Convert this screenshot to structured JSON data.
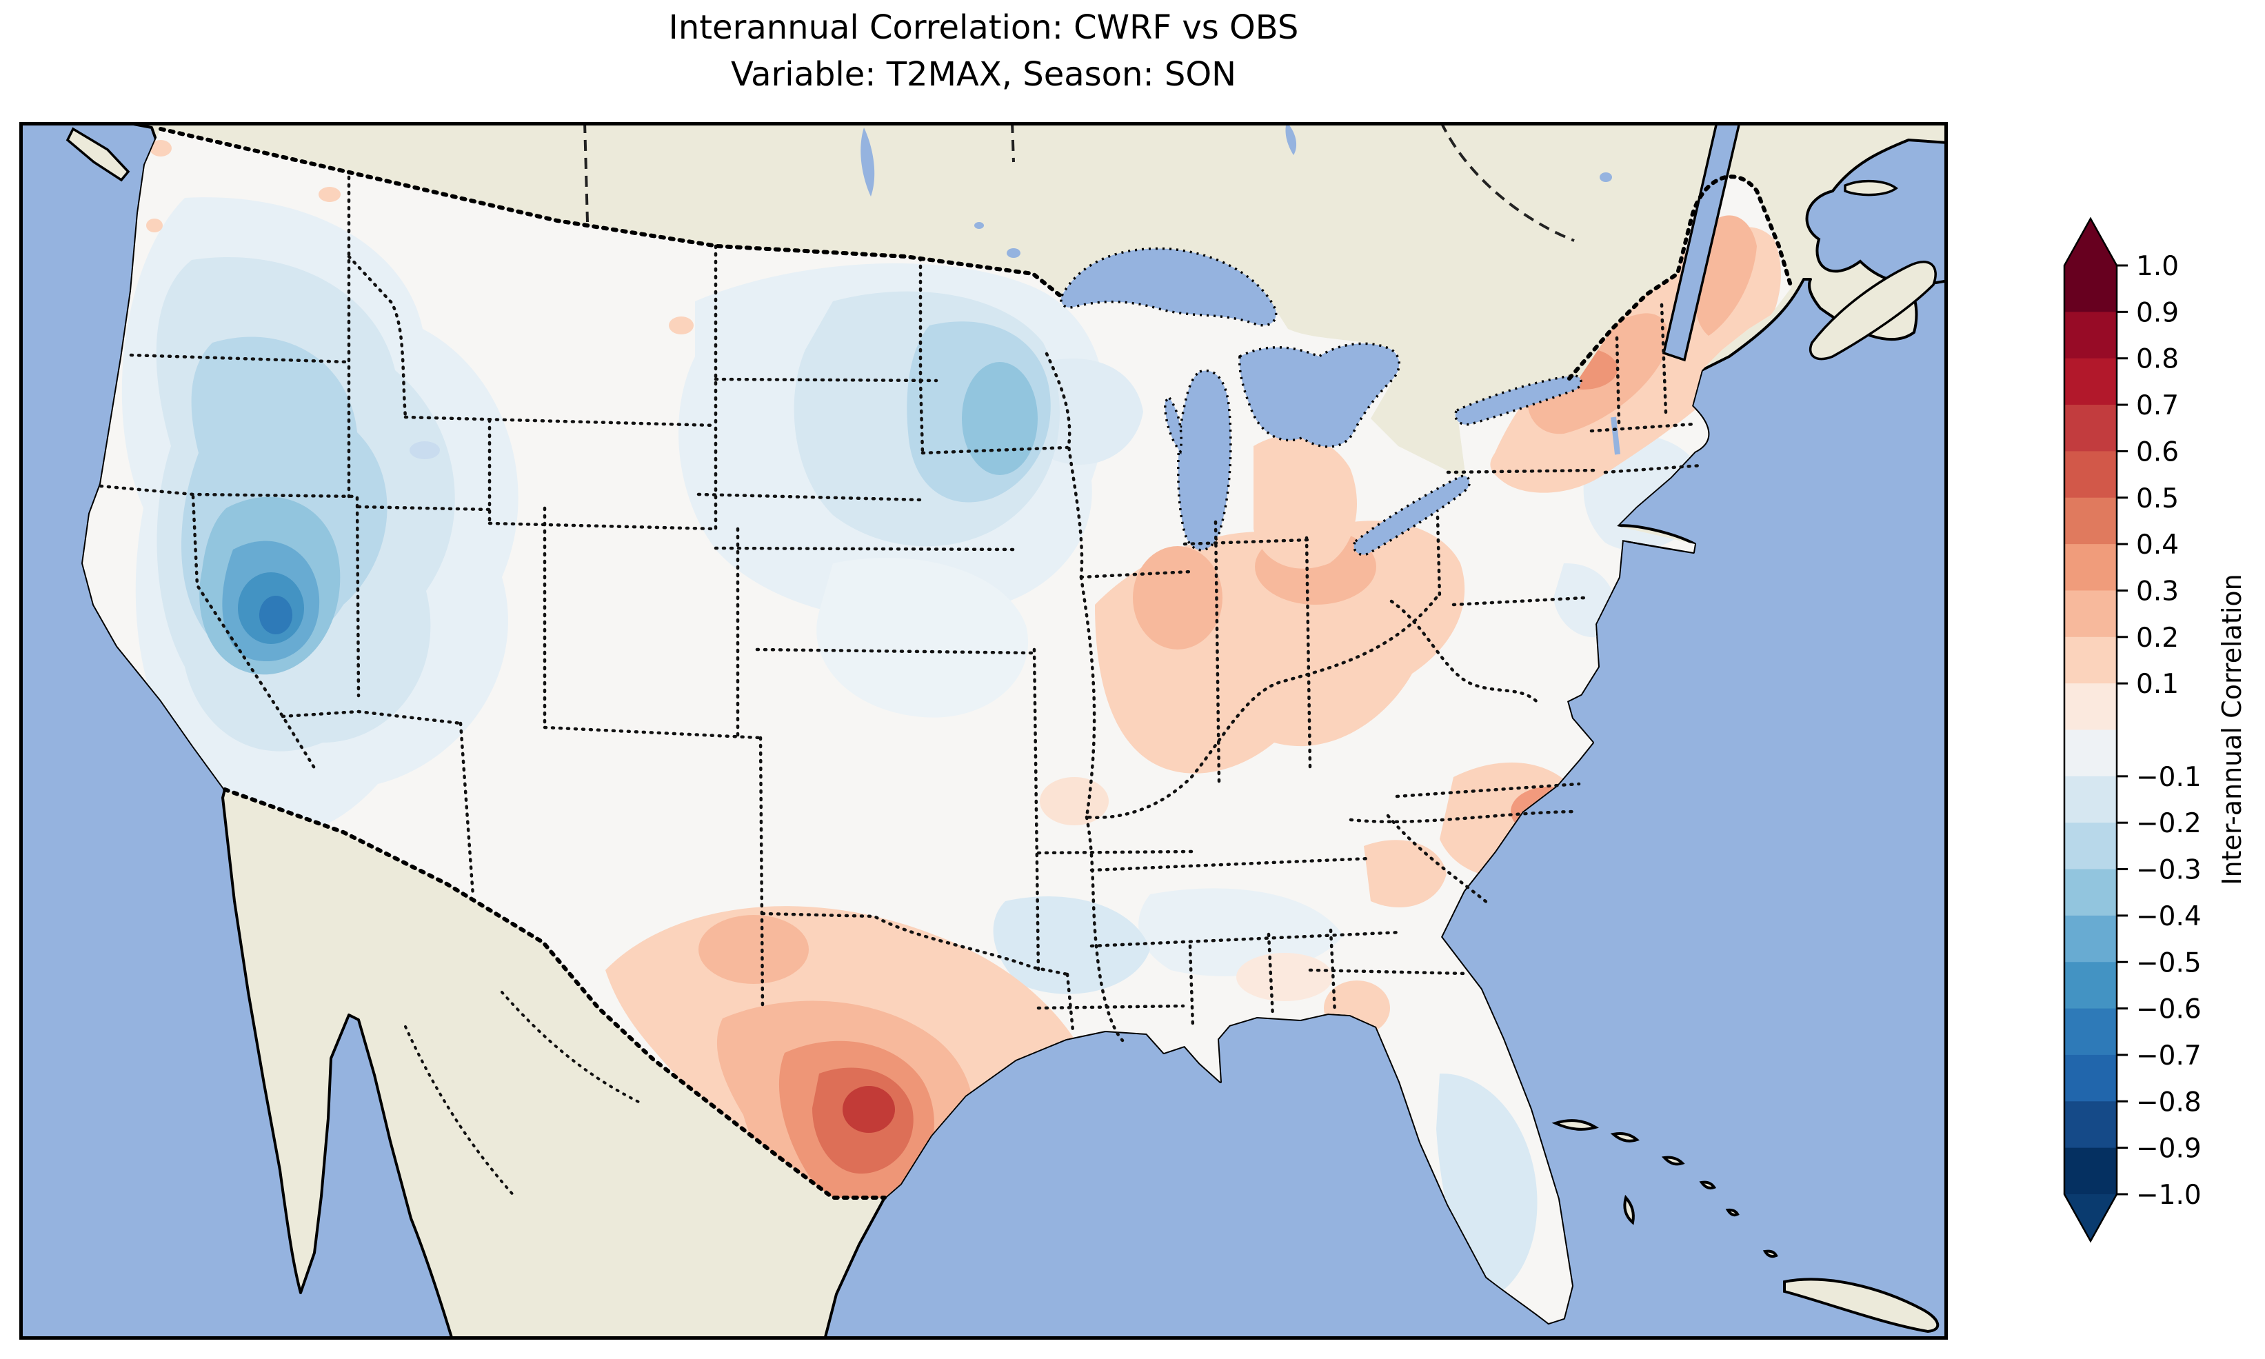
{
  "title": {
    "line1": "Interannual Correlation: CWRF vs OBS",
    "line2": "Variable: T2MAX, Season: SON"
  },
  "colorbar": {
    "label": "Inter-annual Correlation",
    "orientation": "vertical",
    "extend": "both",
    "over_color": "#67001f",
    "under_color": "#0a3b6f",
    "tick_values": [
      1.0,
      0.9,
      0.8,
      0.7,
      0.6,
      0.5,
      0.4,
      0.3,
      0.2,
      0.1,
      -0.1,
      -0.2,
      -0.3,
      -0.4,
      -0.5,
      -0.6,
      -0.7,
      -0.8,
      -0.9,
      -1.0
    ],
    "tick_labels": [
      "1.0",
      "0.9",
      "0.8",
      "0.7",
      "0.6",
      "0.5",
      "0.4",
      "0.3",
      "0.2",
      "0.1",
      "−0.1",
      "−0.2",
      "−0.3",
      "−0.4",
      "−0.5",
      "−0.6",
      "−0.7",
      "−0.8",
      "−0.9",
      "−1.0"
    ],
    "segments": [
      {
        "range": "0.9 to 1.0",
        "color": "#67001f"
      },
      {
        "range": "0.8 to 0.9",
        "color": "#970b26"
      },
      {
        "range": "0.7 to 0.8",
        "color": "#b2182b"
      },
      {
        "range": "0.6 to 0.7",
        "color": "#c23c3e"
      },
      {
        "range": "0.5 to 0.6",
        "color": "#d25849"
      },
      {
        "range": "0.4 to 0.5",
        "color": "#e07a5e"
      },
      {
        "range": "0.3 to 0.4",
        "color": "#f09c7b"
      },
      {
        "range": "0.2 to 0.3",
        "color": "#f7b99c"
      },
      {
        "range": "0.1 to 0.2",
        "color": "#fbd3bc"
      },
      {
        "range": "0.0 to 0.1",
        "color": "#fbe9de"
      },
      {
        "range": "-0.1 to 0.0",
        "color": "#eef2f5"
      },
      {
        "range": "-0.2 to -0.1",
        "color": "#d6e7f1"
      },
      {
        "range": "-0.3 to -0.2",
        "color": "#b8d8ea"
      },
      {
        "range": "-0.4 to -0.3",
        "color": "#92c5de"
      },
      {
        "range": "-0.5 to -0.4",
        "color": "#68abd2"
      },
      {
        "range": "-0.6 to -0.5",
        "color": "#4393c3"
      },
      {
        "range": "-0.7 to -0.6",
        "color": "#2e7ab8"
      },
      {
        "range": "-0.8 to -0.7",
        "color": "#2166ac"
      },
      {
        "range": "-0.9 to -0.8",
        "color": "#154a88"
      },
      {
        "range": "-1.0 to -0.9",
        "color": "#053061"
      }
    ]
  },
  "map": {
    "ocean_color": "#95b3df",
    "lake_color": "#95b3df",
    "land_nodata_color": "#eceada",
    "conus_base_color": "#f7f6f4",
    "coastline": "solid black",
    "state_borders": "dotted black",
    "country_borders": "dotted black (thick)",
    "province_borders": "dashed black",
    "visible_features": [
      "Pacific Ocean",
      "Atlantic Ocean",
      "Gulf of Mexico",
      "Great Lakes",
      "Baja California",
      "Gulf of St. Lawrence",
      "Nova Scotia",
      "Bahamas and Cuba islands"
    ]
  },
  "chart_data": {
    "type": "heatmap",
    "title": "Interannual Correlation: CWRF vs OBS — Variable: T2MAX, Season: SON",
    "comparison": "CWRF vs OBS",
    "variable": "T2MAX",
    "season": "SON",
    "colorbar_label": "Inter-annual Correlation",
    "value_range": [
      -1.0,
      1.0
    ],
    "contour_interval": 0.1,
    "colormap": "RdBu_r diverging (red = positive correlation, blue = negative)",
    "geographic_domain": "Contiguous United States, Lambert-conformal-style projection",
    "legend_position": "right vertical colorbar with triangular over/under extensions",
    "regions": [
      {
        "name": "Pacific Northwest (WA/OR)",
        "value": -0.2
      },
      {
        "name": "Washington coast spots",
        "value": 0.2
      },
      {
        "name": "Great Basin (Nevada/Utah/Idaho)",
        "value": -0.4
      },
      {
        "name": "Southern Nevada - Arizona core",
        "value": -0.7
      },
      {
        "name": "California coast",
        "value": 0.0
      },
      {
        "name": "Colorado Rockies",
        "value": -0.2
      },
      {
        "name": "Eastern Montana",
        "value": -0.1
      },
      {
        "name": "Dakotas",
        "value": -0.3
      },
      {
        "name": "Western Minnesota core",
        "value": -0.4
      },
      {
        "name": "Nebraska/Kansas plains",
        "value": -0.1
      },
      {
        "name": "Oklahoma / north Texas",
        "value": -0.2
      },
      {
        "name": "West Texas / southern New Mexico",
        "value": 0.3
      },
      {
        "name": "South-central Texas ring",
        "value": 0.5
      },
      {
        "name": "South-central Texas core (near coast)",
        "value": 0.7
      },
      {
        "name": "Louisiana/Mississippi Gulf coast",
        "value": 0.1
      },
      {
        "name": "Florida panhandle spot",
        "value": 0.2
      },
      {
        "name": "Florida peninsula",
        "value": -0.2
      },
      {
        "name": "Georgia/Alabama interior",
        "value": 0.0
      },
      {
        "name": "Carolinas coastal band",
        "value": 0.3
      },
      {
        "name": "Tennessee Valley",
        "value": -0.1
      },
      {
        "name": "Ohio Valley (Indiana-Ohio) band",
        "value": 0.35
      },
      {
        "name": "Michigan Lower Peninsula",
        "value": 0.2
      },
      {
        "name": "Wisconsin",
        "value": -0.1
      },
      {
        "name": "Upstate New York - Vermont band",
        "value": 0.35
      },
      {
        "name": "Northern Maine",
        "value": 0.3
      },
      {
        "name": "Southern New England / NJ coast",
        "value": -0.1
      },
      {
        "name": "Mid-Atlantic (Chesapeake)",
        "value": 0.0
      },
      {
        "name": "West Virginia / Appalachians",
        "value": 0.2
      }
    ]
  }
}
